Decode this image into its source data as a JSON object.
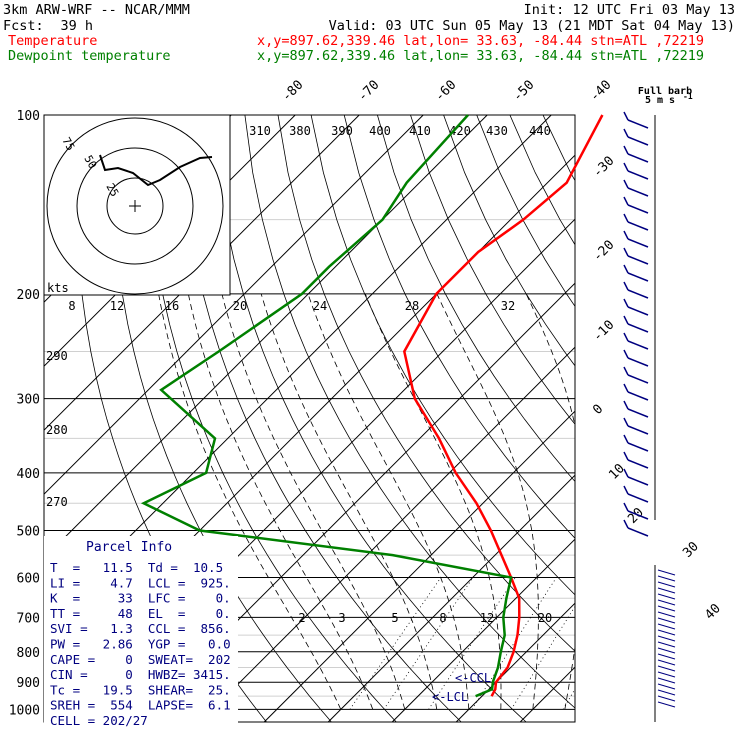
{
  "header": {
    "model": "3km ARW-WRF -- NCAR/MMM",
    "init": "Init: 12 UTC Fri 03 May 13",
    "fcst_label": "Fcst:",
    "fcst_value": "39 h",
    "valid": "Valid: 03 UTC Sun 05 May 13 (21 MDT Sat 04 May 13)",
    "temp_label": "Temperature",
    "temp_info": "x,y=897.62,339.46   lat,lon= 33.63, -84.44   stn=ATL ,72219",
    "dew_label": "Dewpoint temperature",
    "dew_info": "x,y=897.62,339.46   lat,lon= 33.63, -84.44   stn=ATL ,72219",
    "full_barb_line1": "Full barb",
    "full_barb_line2": "5 m s"
  },
  "colors": {
    "temperature": "#ff0000",
    "dewpoint": "#008000",
    "info": "#000080",
    "grid": "#000000"
  },
  "chart_data": {
    "type": "line",
    "title": "Skew-T log-P diagram",
    "pressure_ticks": [
      "100",
      "200",
      "300",
      "400",
      "500",
      "600",
      "700",
      "800",
      "900",
      "1000"
    ],
    "temperature_ticks_top": [
      "-80",
      "-70",
      "-60",
      "-50",
      "-40"
    ],
    "temperature_ticks_right": [
      "-30",
      "-20",
      "-10",
      "0",
      "10",
      "20",
      "30",
      "40"
    ],
    "theta_labels": [
      "310",
      "380",
      "390",
      "400",
      "410",
      "420",
      "430",
      "440"
    ],
    "theta_e_labels": [
      "290",
      "280",
      "270"
    ],
    "mixing_ratio_labels": [
      "2",
      "3",
      "5",
      "8",
      "12",
      "20"
    ],
    "hodograph_speed_labels": [
      "8",
      "12",
      "16",
      "20",
      "24",
      "28",
      "32"
    ],
    "hodograph_unit": "kts",
    "hodograph_ring_labels": [
      "75",
      "50",
      "25"
    ],
    "ccl_label": "<-CCL",
    "lcl_label": "<-LCL",
    "series": [
      {
        "name": "Temperature",
        "color": "#ff0000",
        "points": [
          [
            100,
            -62
          ],
          [
            130,
            -57
          ],
          [
            150,
            -58
          ],
          [
            170,
            -60
          ],
          [
            200,
            -60
          ],
          [
            250,
            -56
          ],
          [
            300,
            -47
          ],
          [
            350,
            -37
          ],
          [
            400,
            -29
          ],
          [
            450,
            -21
          ],
          [
            500,
            -14.5
          ],
          [
            550,
            -9
          ],
          [
            600,
            -4
          ],
          [
            650,
            0.5
          ],
          [
            700,
            3.5
          ],
          [
            750,
            6
          ],
          [
            800,
            8
          ],
          [
            850,
            9.5
          ],
          [
            900,
            10
          ],
          [
            925,
            11
          ],
          [
            950,
            11.5
          ]
        ]
      },
      {
        "name": "Dewpoint temperature",
        "color": "#008000",
        "points": [
          [
            100,
            -83
          ],
          [
            130,
            -82
          ],
          [
            150,
            -80
          ],
          [
            180,
            -81
          ],
          [
            200,
            -81
          ],
          [
            250,
            -85
          ],
          [
            290,
            -88
          ],
          [
            350,
            -72
          ],
          [
            400,
            -68
          ],
          [
            450,
            -73
          ],
          [
            500,
            -60
          ],
          [
            550,
            -26
          ],
          [
            600,
            -4
          ],
          [
            650,
            -1.5
          ],
          [
            700,
            1
          ],
          [
            750,
            4
          ],
          [
            800,
            6
          ],
          [
            850,
            8
          ],
          [
            900,
            9.5
          ],
          [
            925,
            10.5
          ],
          [
            950,
            9
          ]
        ]
      }
    ],
    "hodograph_points": [
      [
        -5,
        0
      ],
      [
        -4,
        -5
      ],
      [
        -2,
        -6
      ],
      [
        0,
        -5
      ],
      [
        3,
        -3
      ],
      [
        6,
        -2
      ],
      [
        9,
        1
      ],
      [
        11,
        -1
      ]
    ],
    "parcel_info": {
      "title": "Parcel Info",
      "rows": [
        "T  =   11.5  Td =  10.5",
        "LI =    4.7  LCL =  925.",
        "K  =     33  LFC =    0.",
        "TT =     48  EL  =    0.",
        "SVI =   1.3  CCL =  856.",
        "PW =   2.86  YGP =   0.0",
        "CAPE =    0  SWEAT=  202",
        "CIN =     0  HWBZ= 3415.",
        "Tc =   19.5  SHEAR=  25.",
        "SREH =  554  LAPSE=  6.1",
        "CELL = 202/27"
      ]
    }
  }
}
